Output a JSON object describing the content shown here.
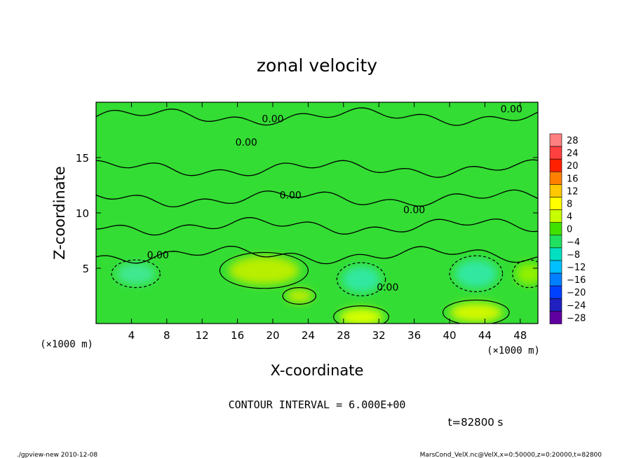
{
  "chart_data": {
    "type": "heatmap",
    "title": "zonal velocity",
    "xlabel": "X-coordinate",
    "ylabel": "Z-coordinate",
    "x_unit_label": "(×1000 m)",
    "y_unit_label": "(×1000 m)",
    "xlim": [
      0,
      50
    ],
    "ylim": [
      0,
      20
    ],
    "x_ticks": [
      4,
      8,
      12,
      16,
      20,
      24,
      28,
      32,
      36,
      40,
      44,
      48
    ],
    "y_ticks": [
      5,
      10,
      15
    ],
    "colorbar": {
      "levels": [
        28,
        24,
        20,
        16,
        12,
        8,
        4,
        0,
        -4,
        -8,
        -12,
        -16,
        -20,
        -24,
        -28
      ],
      "labels": [
        "28",
        "24",
        "20",
        "16",
        "12",
        "8",
        "4",
        "0",
        "−4",
        "−8",
        "−12",
        "−16",
        "−20",
        "−24",
        "−28"
      ],
      "colors": [
        "#ff8080",
        "#ff4040",
        "#ff2000",
        "#ff8000",
        "#ffc800",
        "#ffff00",
        "#c8ff00",
        "#40e000",
        "#20e060",
        "#00e0c0",
        "#00c0ff",
        "#0080ff",
        "#0040ff",
        "#2020c0",
        "#6000a0"
      ]
    },
    "contour_label": "0.00",
    "contour_label_top": "0.00",
    "contour_interval_text": "CONTOUR INTERVAL = 6.000E+00",
    "time_text": "t=82800 s",
    "background_color": "#33dd33",
    "features": [
      {
        "kind": "positive",
        "x": 19,
        "z": 4.8,
        "rx": 4.0,
        "rz": 1.3,
        "color": "#b8ee00"
      },
      {
        "kind": "positive",
        "x": 30,
        "z": 0.6,
        "rx": 2.5,
        "rz": 0.8,
        "color": "#d8ff00"
      },
      {
        "kind": "positive",
        "x": 43,
        "z": 1.0,
        "rx": 3.0,
        "rz": 0.9,
        "color": "#d0f800"
      },
      {
        "kind": "positive",
        "x": 23,
        "z": 2.5,
        "rx": 1.5,
        "rz": 0.6,
        "color": "#c0ee00"
      },
      {
        "kind": "negative",
        "x": 30,
        "z": 4.0,
        "rx": 2.2,
        "rz": 1.2,
        "color": "#30e8a0"
      },
      {
        "kind": "negative",
        "x": 43,
        "z": 4.5,
        "rx": 2.4,
        "rz": 1.3,
        "color": "#30e8a0"
      },
      {
        "kind": "negative",
        "x": 4.5,
        "z": 4.5,
        "rx": 2.2,
        "rz": 1.0,
        "color": "#40e890"
      },
      {
        "kind": "negative",
        "x": 49,
        "z": 4.5,
        "rx": 1.5,
        "rz": 1.0,
        "color": "#90f000"
      }
    ],
    "contour_lines_z": [
      18.7,
      14.0,
      11.3,
      8.8,
      6.2
    ]
  },
  "footer": {
    "left": "./gpview-new   2010-12-08",
    "right": "MarsCond_VelX.nc@VelX,x=0:50000,z=0:20000,t=82800"
  }
}
